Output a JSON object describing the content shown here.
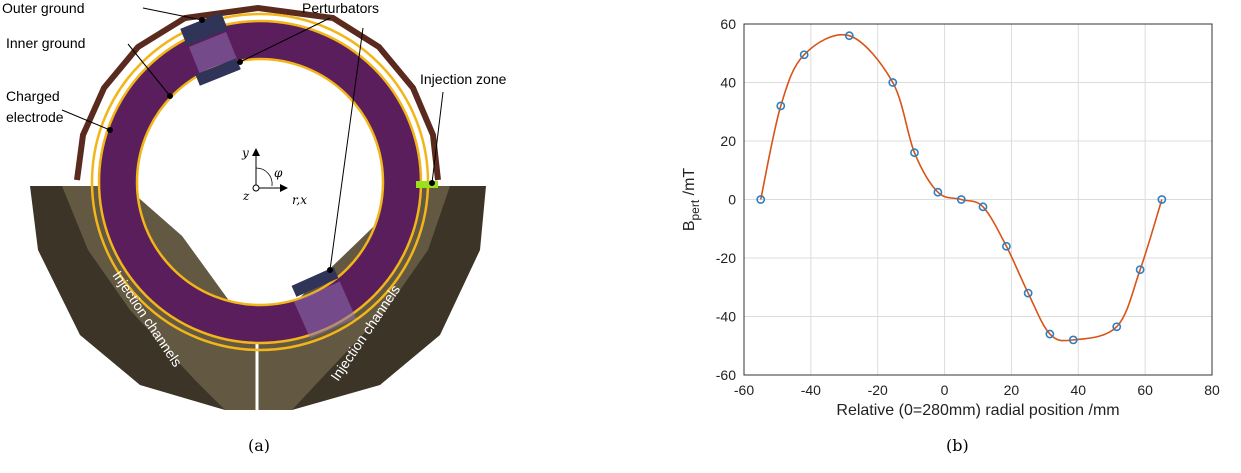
{
  "diagram": {
    "caption": "(a)",
    "labels": {
      "outer_ground": "Outer ground",
      "inner_ground": "Inner ground",
      "charged_electrode_1": "Charged",
      "charged_electrode_2": "electrode",
      "perturbators": "Perturbators",
      "injection_zone": "Injection zone",
      "channel_left": "Injection channels",
      "channel_right": "Injection channels"
    },
    "axes": {
      "y": "y",
      "phi": "φ",
      "z": "z",
      "rx": "r,x"
    },
    "colors": {
      "ring": "#5a1e5c",
      "ring_edge": "#f2b51a",
      "outer_ground": "#5a2a1e",
      "channel_dark": "#3b3427",
      "channel_light": "#6b5f48",
      "perturbator": "#2f3458",
      "injection_zone": "#9be01c"
    }
  },
  "chart": {
    "caption": "(b)",
    "ylabel_main": "B",
    "ylabel_sub": "pert",
    "ylabel_unit": " /mT",
    "xlabel": "Relative (0=280mm) radial position /mm",
    "xticks": [
      "-60",
      "-40",
      "-20",
      "0",
      "20",
      "40",
      "60",
      "80"
    ],
    "yticks": [
      "60",
      "40",
      "20",
      "0",
      "-20",
      "-40",
      "-60"
    ]
  },
  "chart_data": {
    "type": "scatter",
    "title": "",
    "xlim": [
      -60,
      80
    ],
    "ylim": [
      -60,
      60
    ],
    "grid": true,
    "series": [
      {
        "x": [
          -55,
          -49,
          -42,
          -28.5,
          -15.5,
          -9,
          -2,
          5,
          11.5,
          18.5,
          25,
          31.5,
          38.5,
          51.5,
          58.5,
          65
        ],
        "y": [
          0,
          32,
          49.5,
          56,
          40,
          16,
          2.5,
          0,
          -2.5,
          -16,
          -32,
          -46,
          -48,
          -43.5,
          -24,
          0
        ]
      }
    ],
    "colors": {
      "markers": "#2e7fc0",
      "curve": "#d95319"
    }
  }
}
